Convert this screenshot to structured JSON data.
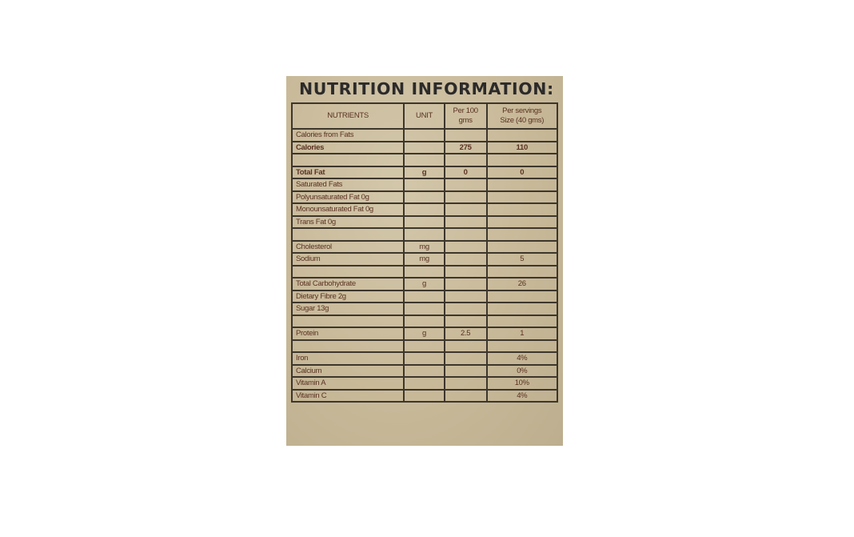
{
  "title": "NUTRITION INFORMATION:",
  "headers": [
    "NUTRIENTS",
    "UNIT",
    "Per 100\ngms",
    "Per servings\nSize (40 gms)"
  ],
  "colors": {
    "background": "#c8b999",
    "text": "#5a3222",
    "border": "#3d362c",
    "title": "#2c2a2a"
  },
  "rows": [
    {
      "nutrient": "Calories from Fats",
      "unit": "",
      "per100": "",
      "serving": ""
    },
    {
      "nutrient": "Calories",
      "unit": "",
      "per100": "275",
      "serving": "110",
      "bold": true
    },
    {
      "nutrient": "",
      "unit": "",
      "per100": "",
      "serving": ""
    },
    {
      "nutrient": "Total Fat",
      "unit": "g",
      "per100": "0",
      "serving": "0",
      "bold": true
    },
    {
      "nutrient": "Saturated Fats",
      "unit": "",
      "per100": "",
      "serving": ""
    },
    {
      "nutrient": "Polyunsaturated Fat 0g",
      "unit": "",
      "per100": "",
      "serving": ""
    },
    {
      "nutrient": "Monounsaturated Fat 0g",
      "unit": "",
      "per100": "",
      "serving": ""
    },
    {
      "nutrient": "Trans Fat 0g",
      "unit": "",
      "per100": "",
      "serving": ""
    },
    {
      "nutrient": "",
      "unit": "",
      "per100": "",
      "serving": ""
    },
    {
      "nutrient": "Cholesterol",
      "unit": "mg",
      "per100": "",
      "serving": ""
    },
    {
      "nutrient": "Sodium",
      "unit": "mg",
      "per100": "",
      "serving": "5"
    },
    {
      "nutrient": "",
      "unit": "",
      "per100": "",
      "serving": ""
    },
    {
      "nutrient": "Total Carbohydrate",
      "unit": "g",
      "per100": "",
      "serving": "26"
    },
    {
      "nutrient": "Dietary Fibre  2g",
      "unit": "",
      "per100": "",
      "serving": ""
    },
    {
      "nutrient": "Sugar 13g",
      "unit": "",
      "per100": "",
      "serving": ""
    },
    {
      "nutrient": "",
      "unit": "",
      "per100": "",
      "serving": ""
    },
    {
      "nutrient": "Protein",
      "unit": "g",
      "per100": "2.5",
      "serving": "1"
    },
    {
      "nutrient": "",
      "unit": "",
      "per100": "",
      "serving": ""
    },
    {
      "nutrient": "Iron",
      "unit": "",
      "per100": "",
      "serving": "4%"
    },
    {
      "nutrient": "Calcium",
      "unit": "",
      "per100": "",
      "serving": "0%"
    },
    {
      "nutrient": "Vitamin A",
      "unit": "",
      "per100": "",
      "serving": "10%"
    },
    {
      "nutrient": "Vitamin C",
      "unit": "",
      "per100": "",
      "serving": "4%"
    }
  ]
}
